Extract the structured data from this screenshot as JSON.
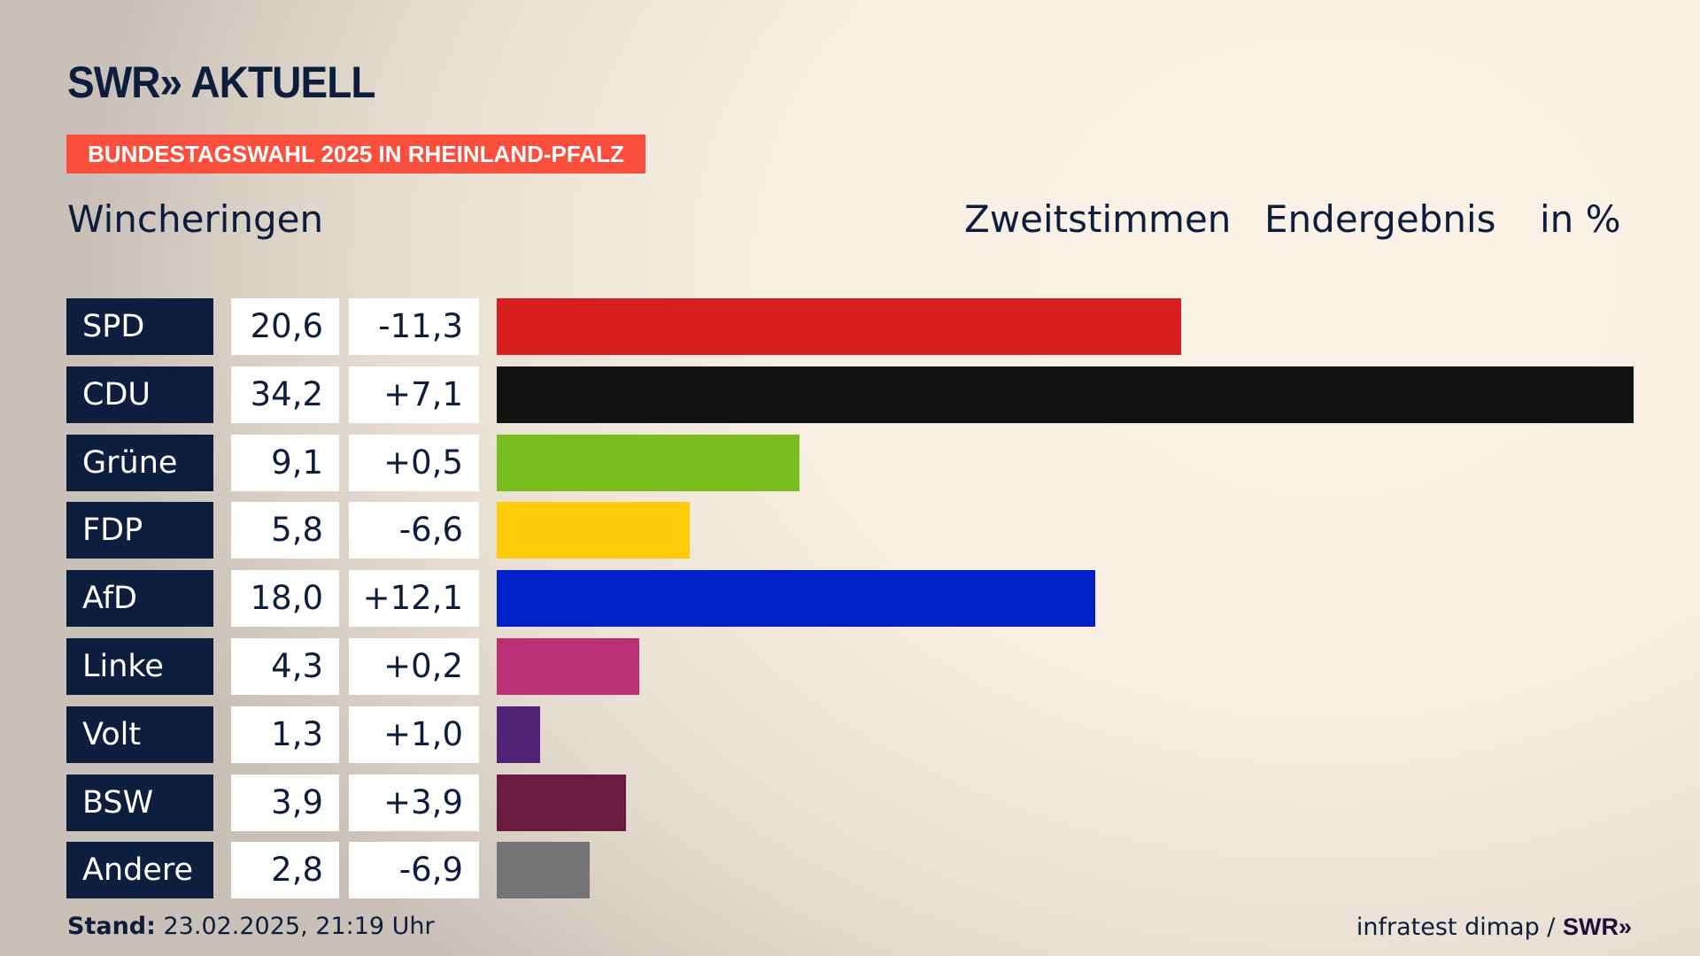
{
  "header": {
    "logo": "SWR» AKTUELL",
    "banner": "BUNDESTAGSWAHL 2025 IN RHEINLAND-PFALZ",
    "region": "Wincheringen",
    "vote_type": "Zweitstimmen",
    "result_type": "Endergebnis",
    "unit": "in %"
  },
  "chart_data": {
    "type": "bar",
    "orientation": "horizontal",
    "title": "Wincheringen – Zweitstimmen Endergebnis in %",
    "categories": [
      "SPD",
      "CDU",
      "Grüne",
      "FDP",
      "AfD",
      "Linke",
      "Volt",
      "BSW",
      "Andere"
    ],
    "values": [
      20.6,
      34.2,
      9.1,
      5.8,
      18.0,
      4.3,
      1.3,
      3.9,
      2.8
    ],
    "value_labels": [
      "20,6",
      "34,2",
      "9,1",
      "5,8",
      "18,0",
      "4,3",
      "1,3",
      "3,9",
      "2,8"
    ],
    "diff_labels": [
      "-11,3",
      "+7,1",
      "+0,5",
      "-6,6",
      "+12,1",
      "+0,2",
      "+1,0",
      "+3,9",
      "-6,9"
    ],
    "diffs": [
      -11.3,
      7.1,
      0.5,
      -6.6,
      12.1,
      0.2,
      1.0,
      3.9,
      -6.9
    ],
    "colors": [
      "#d61f1f",
      "#121212",
      "#78be1e",
      "#ffcc0a",
      "#0021c8",
      "#bb3075",
      "#502379",
      "#6b1a40",
      "#747474"
    ],
    "xlim": [
      0,
      34.2
    ]
  },
  "footer": {
    "stand_label": "Stand:",
    "stand_value": " 23.02.2025, 21:19 Uhr",
    "source": "infratest dimap / ",
    "source_logo": "SWR»"
  }
}
